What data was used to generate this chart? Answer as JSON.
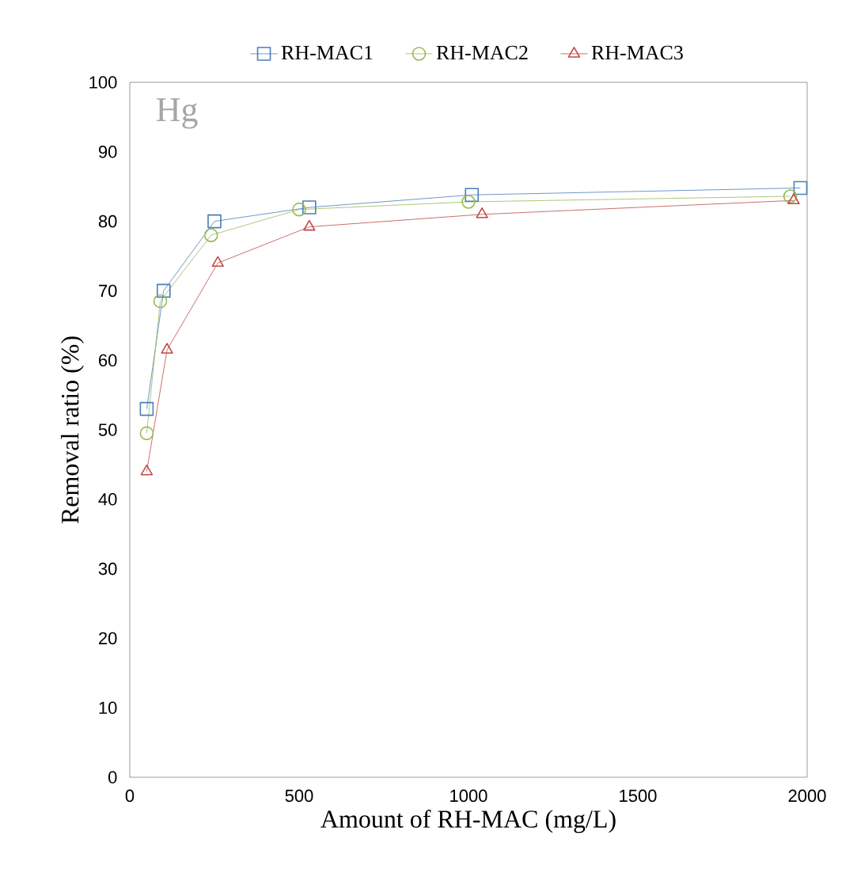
{
  "chart_data": {
    "type": "line",
    "xlabel": "Amount of RH-MAC (mg/L)",
    "ylabel": "Removal ratio (%)",
    "annotations": [
      "Hg"
    ],
    "xlim": [
      0,
      2000
    ],
    "xticks": [
      0,
      500,
      1000,
      1500,
      2000
    ],
    "ylim": [
      0,
      100
    ],
    "yticks": [
      0,
      10,
      20,
      30,
      40,
      50,
      60,
      70,
      80,
      90,
      100
    ],
    "grid": false,
    "legend": "top",
    "line_style": "solid",
    "series": [
      {
        "name": "RH-MAC1",
        "color": "#4a7ebb",
        "marker": "square",
        "x": [
          50,
          100,
          250,
          530,
          1010,
          1980
        ],
        "values": [
          53,
          70,
          80,
          82,
          83.8,
          84.8
        ]
      },
      {
        "name": "RH-MAC2",
        "color": "#98b954",
        "marker": "circle",
        "x": [
          50,
          90,
          240,
          500,
          1000,
          1950
        ],
        "values": [
          49.5,
          68.5,
          78,
          81.7,
          82.8,
          83.6
        ]
      },
      {
        "name": "RH-MAC3",
        "color": "#be4b48",
        "marker": "triangle",
        "x": [
          50,
          110,
          260,
          530,
          1040,
          1960
        ],
        "values": [
          44,
          61.5,
          74,
          79.2,
          81,
          83
        ]
      }
    ]
  }
}
